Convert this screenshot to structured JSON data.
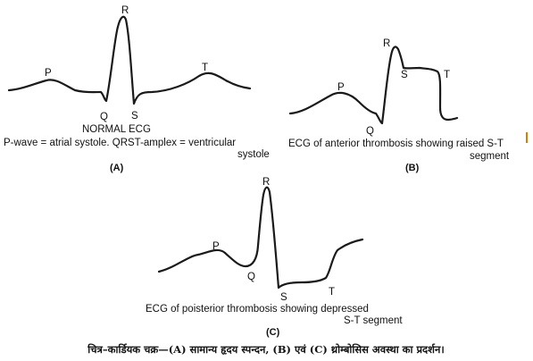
{
  "diagram_a": {
    "points": {
      "p": "P",
      "q": "Q",
      "r": "R",
      "s": "S",
      "t": "T"
    },
    "name": "NORMAL ECG",
    "desc_line1": "P-wave = atrial systole.  QRST-amplex = ventricular",
    "desc_line2": "systole",
    "panel": "(A)"
  },
  "diagram_b": {
    "points": {
      "p": "P",
      "q": "Q",
      "r": "R",
      "s": "S",
      "t": "T"
    },
    "desc_line1": "ECG of anterior thrombosis showing raised S-T",
    "desc_line2": "segment",
    "panel": "(B)"
  },
  "diagram_c": {
    "points": {
      "p": "P",
      "q": "Q",
      "r": "R",
      "s": "S",
      "t": "T"
    },
    "desc_line1": "ECG of poisterior thrombosis showing depressed",
    "desc_line2": "S-T segment",
    "panel": "(C)"
  },
  "caption": "चित्र–कार्डियक चक्र—(A) सामान्य हृदय स्पन्दन, (B) एवं (C) थ्रोम्बोसिस अवस्था का प्रदर्शन।"
}
